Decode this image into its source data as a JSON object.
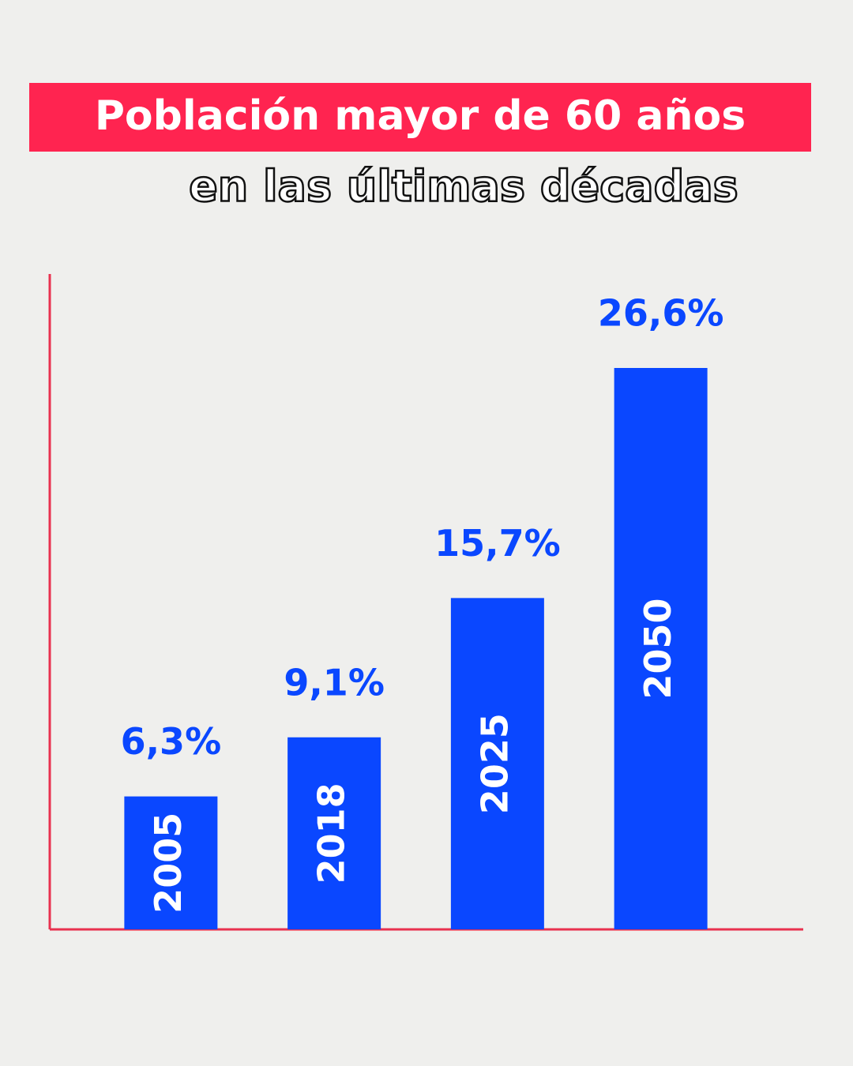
{
  "chart_data": {
    "type": "bar",
    "title": "Población mayor de 60 años",
    "subtitle": "en las últimas décadas",
    "categories": [
      "2005",
      "2018",
      "2025",
      "2050"
    ],
    "values": [
      6.3,
      9.1,
      15.7,
      26.6
    ],
    "value_labels": [
      "6,3%",
      "9,1%",
      "15,7%",
      "26,6%"
    ],
    "color": "#0a47ff"
  }
}
